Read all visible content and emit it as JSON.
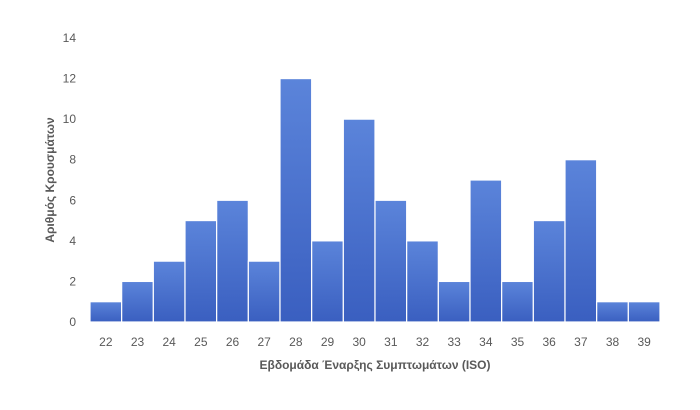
{
  "chart_data": {
    "type": "bar",
    "categories": [
      "22",
      "23",
      "24",
      "25",
      "26",
      "27",
      "28",
      "29",
      "30",
      "31",
      "32",
      "33",
      "34",
      "35",
      "36",
      "37",
      "38",
      "39"
    ],
    "values": [
      1,
      2,
      3,
      5,
      6,
      3,
      12,
      4,
      10,
      6,
      4,
      2,
      7,
      2,
      5,
      8,
      1,
      1
    ],
    "title": "",
    "xlabel": "Εβδομάδα Έναρξης Συμπτωμάτων (ISO)",
    "ylabel": "Αριθμός Κρουσμάτων",
    "ylim": [
      0,
      14
    ],
    "yticks": [
      0,
      2,
      4,
      6,
      8,
      10,
      12,
      14
    ],
    "grid": false,
    "bar_gap": false,
    "colors": {
      "bar_top": "#5b84da",
      "bar_bottom": "#3a5fc0",
      "bar_border": "#ffffff",
      "text": "#595959"
    }
  }
}
